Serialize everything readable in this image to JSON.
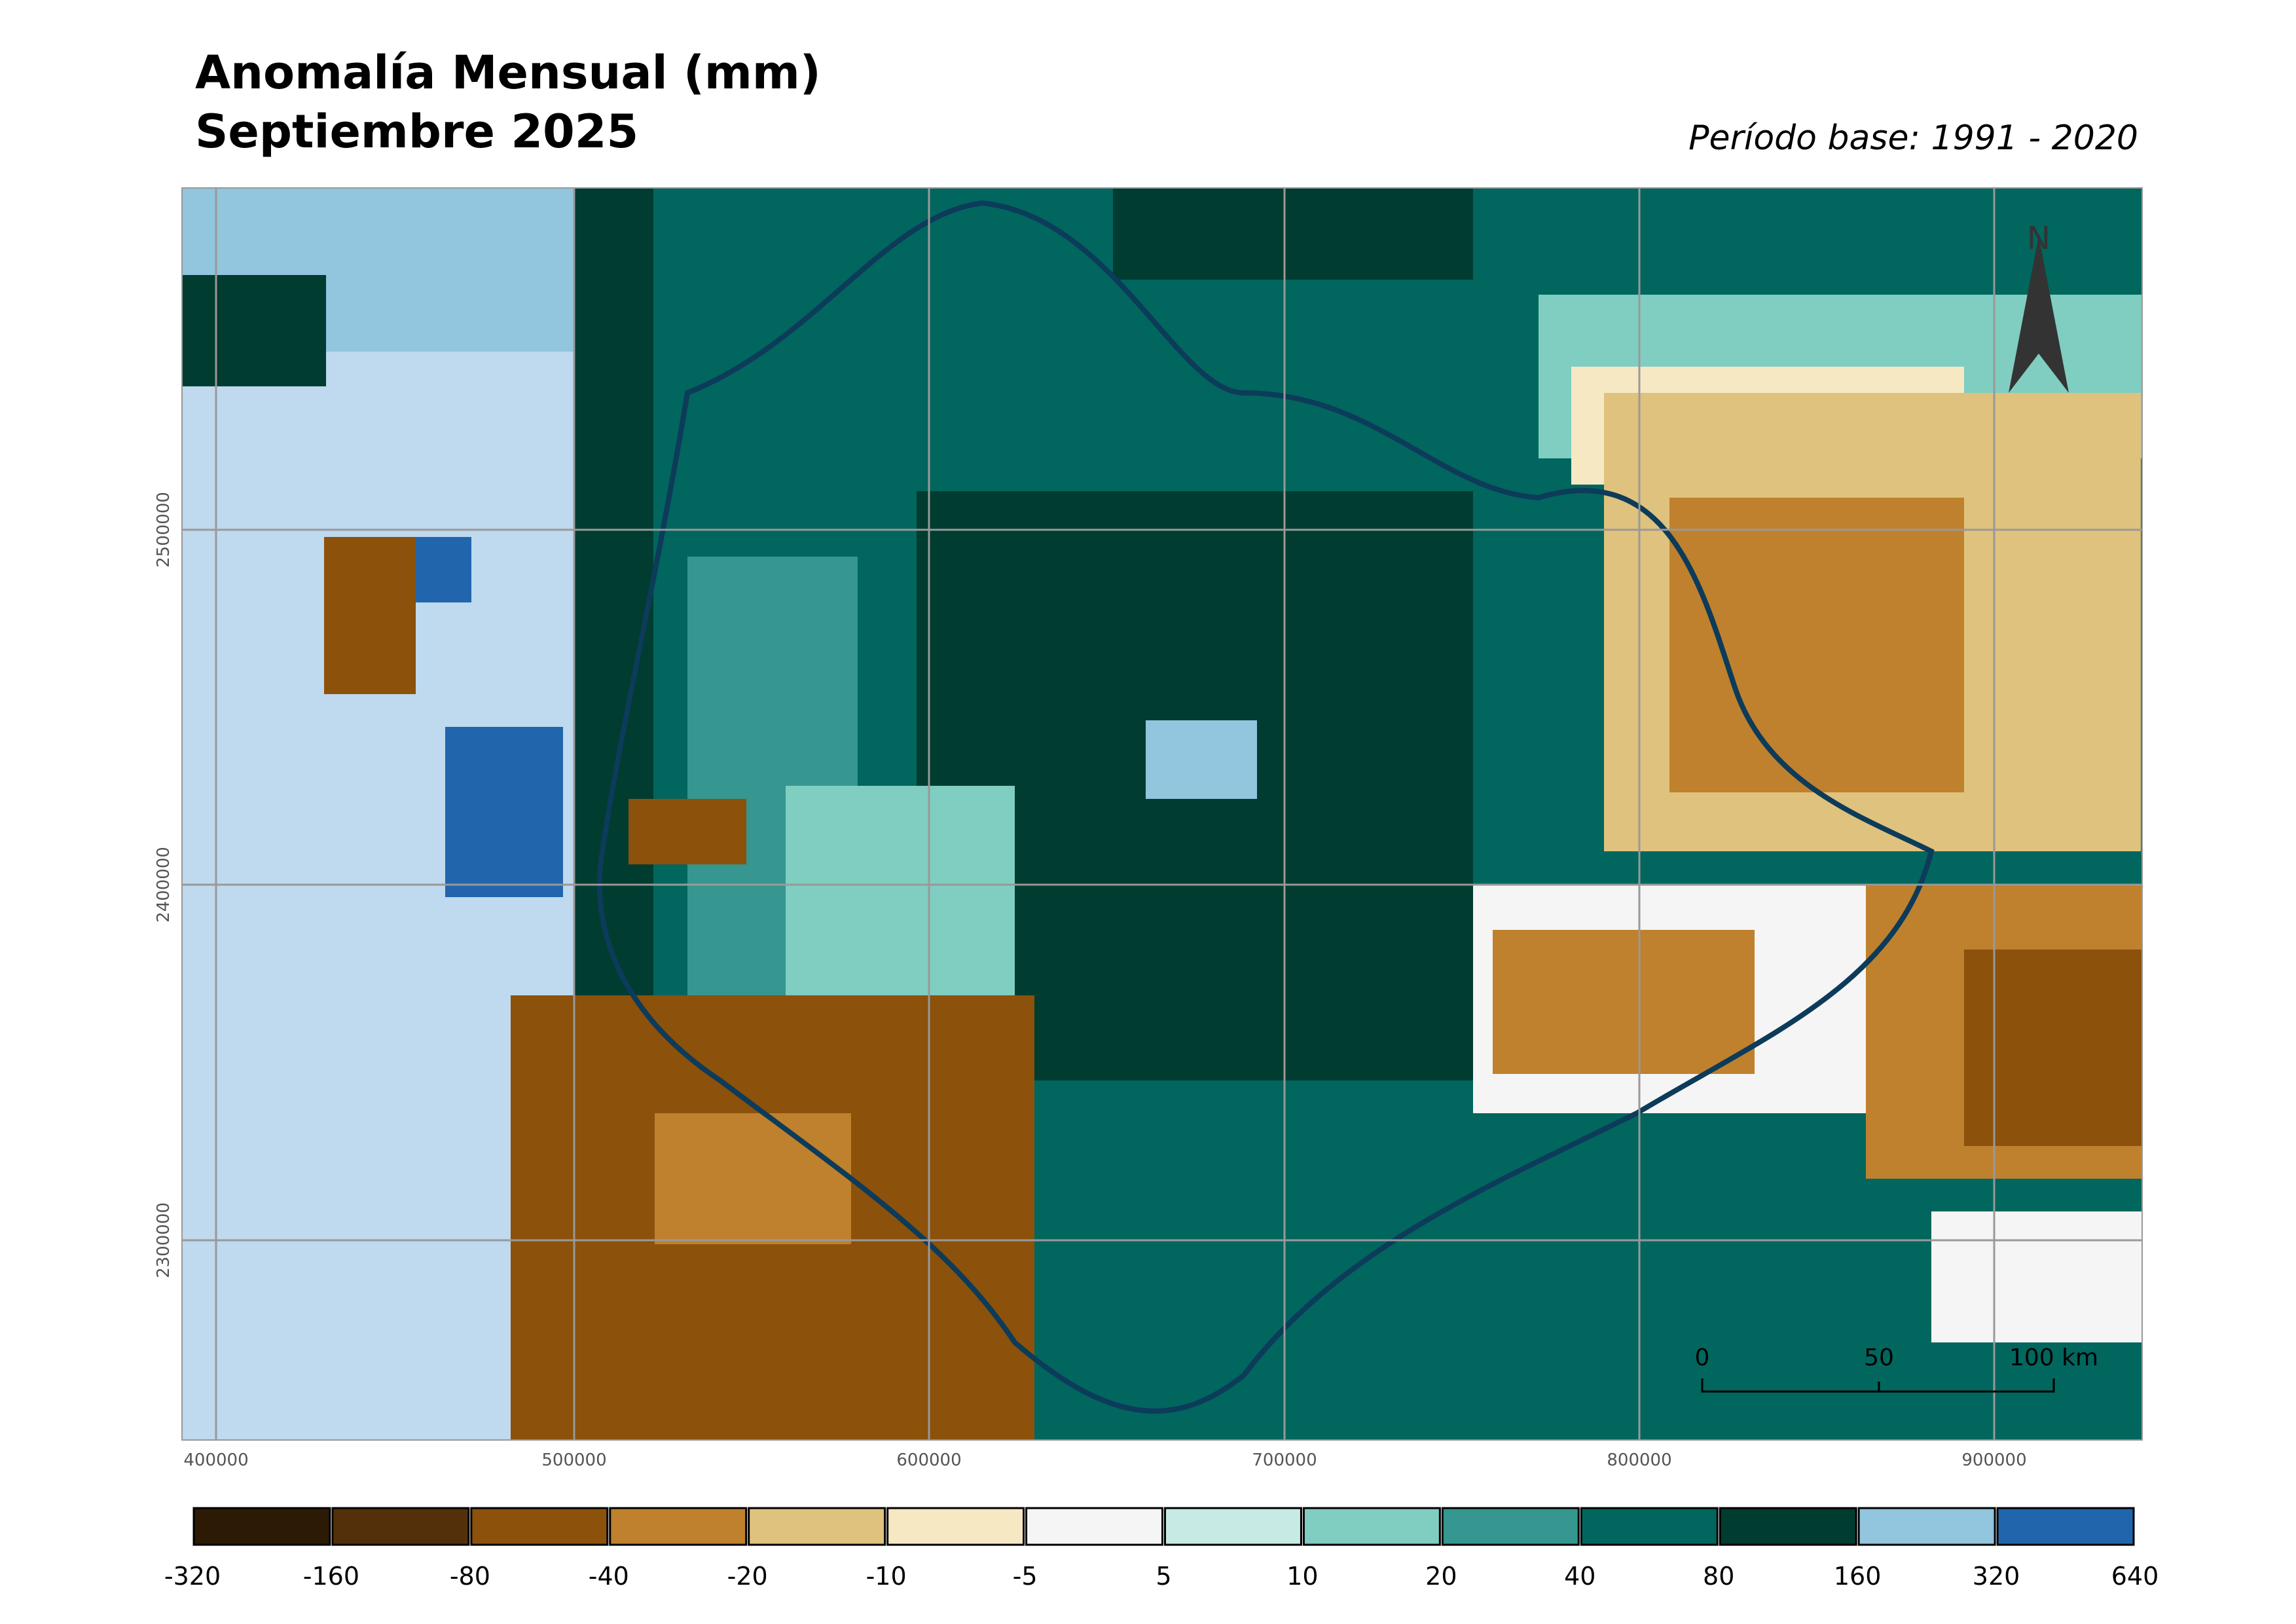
{
  "title": [
    "Anomalía Mensual (mm)",
    "Septiembre 2025"
  ],
  "subtitle": "Período base: 1991 - 2020",
  "map": {
    "x_ticks": [
      "400000",
      "500000",
      "600000",
      "700000",
      "800000",
      "900000"
    ],
    "y_ticks": [
      "2500000",
      "2400000",
      "2300000"
    ],
    "north": "N",
    "scale_bar": [
      "0",
      "50",
      "100 km"
    ]
  },
  "legend": {
    "colors": [
      "#2d1a05",
      "#54300a",
      "#8c510a",
      "#bf812d",
      "#dfc27d",
      "#f6e8c3",
      "#f5f5f5",
      "#c7eae5",
      "#80cdc1",
      "#35978f",
      "#01665e",
      "#003c30",
      "#92c5de",
      "#2166ac"
    ],
    "labels": [
      "-320",
      "-160",
      "-80",
      "-40",
      "-20",
      "-10",
      "-5",
      "5",
      "10",
      "20",
      "40",
      "80",
      "160",
      "320",
      "640"
    ]
  }
}
